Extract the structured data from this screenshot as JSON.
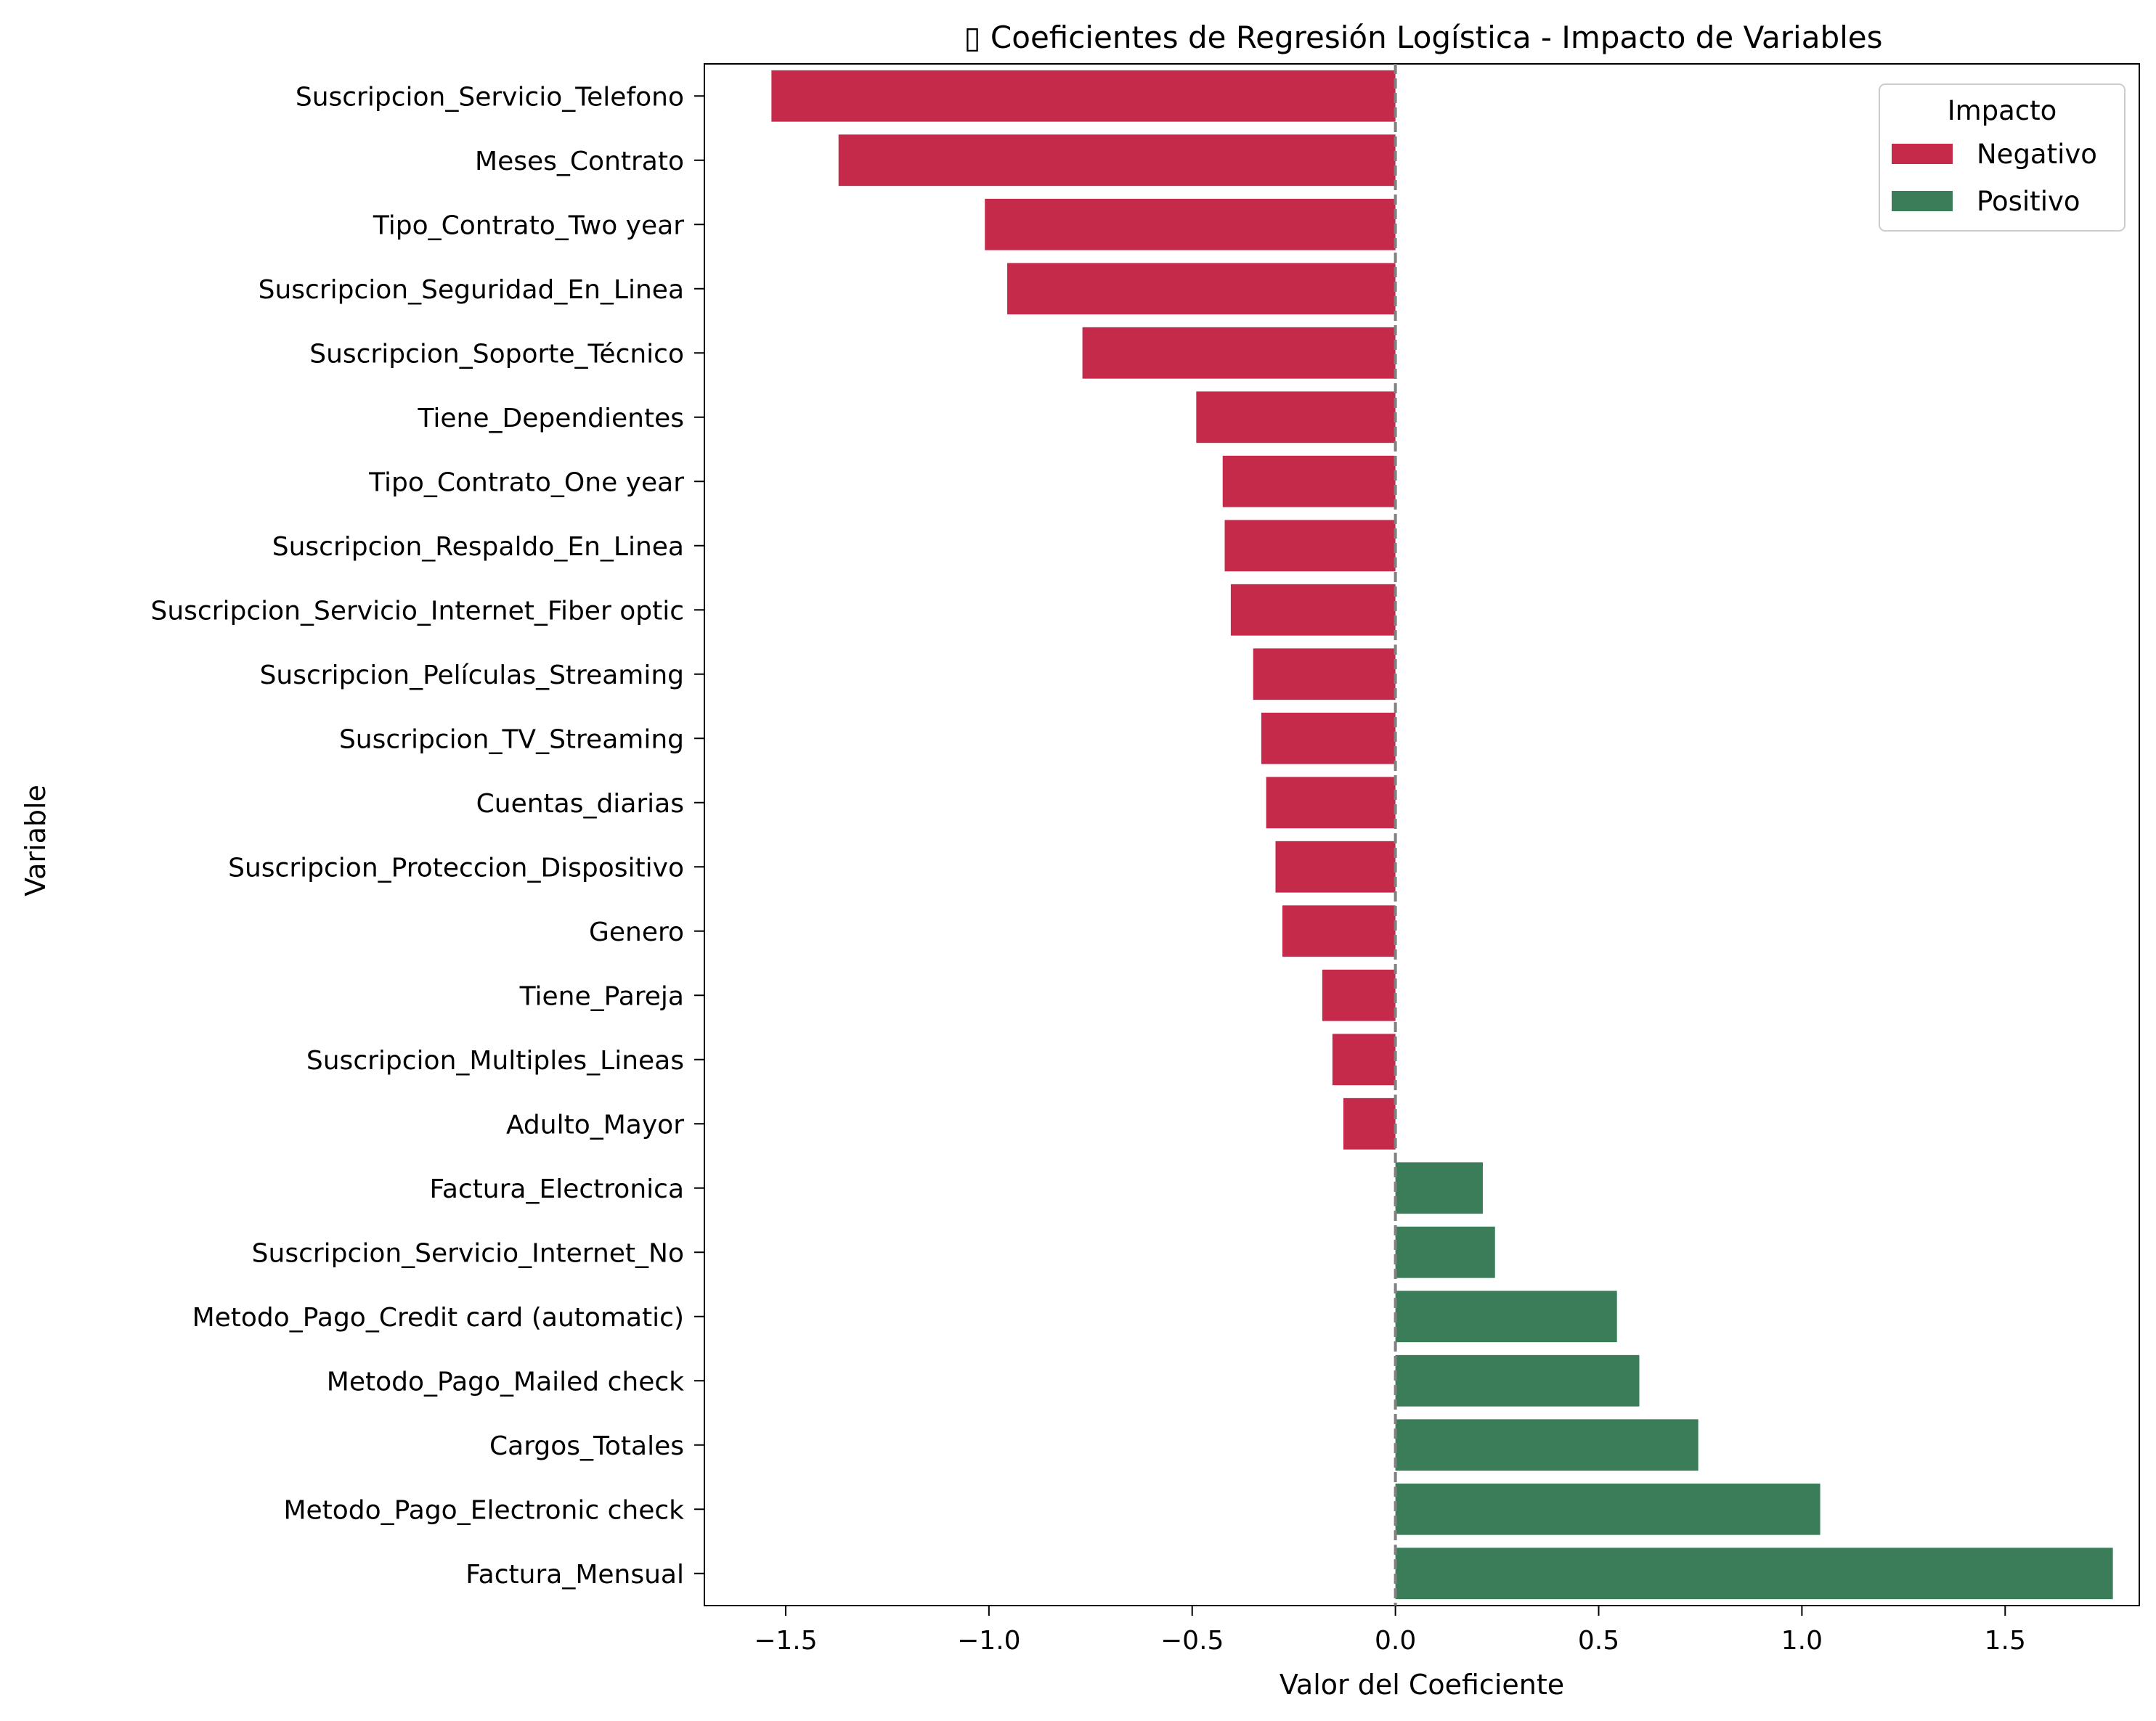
{
  "chart_data": {
    "type": "bar",
    "orientation": "horizontal",
    "title": "▯ Coeficientes de Regresión Logística - Impacto de Variables",
    "xlabel": "Valor del Coeficiente",
    "ylabel": "Variable",
    "xlim": [
      -1.7,
      1.83
    ],
    "xticks": [
      -1.5,
      -1.0,
      -0.5,
      0.0,
      0.5,
      1.0,
      1.5
    ],
    "xtick_labels": [
      "−1.5",
      "−1.0",
      "−0.5",
      "0.0",
      "0.5",
      "1.0",
      "1.5"
    ],
    "grid": false,
    "zero_line": {
      "value": 0,
      "style": "dashed",
      "color": "#808080"
    },
    "legend": {
      "title": "Impacto",
      "placement": "top-right",
      "entries": [
        {
          "label": "Negativo",
          "color": "#c52a4b"
        },
        {
          "label": "Positivo",
          "color": "#3a7d58"
        }
      ]
    },
    "colors": {
      "Negativo": "#c52a4b",
      "Positivo": "#3a7d58"
    },
    "categories": [
      "Suscripcion_Servicio_Telefono",
      "Meses_Contrato",
      "Tipo_Contrato_Two year",
      "Suscripcion_Seguridad_En_Linea",
      "Suscripcion_Soporte_Técnico",
      "Tiene_Dependientes",
      "Tipo_Contrato_One year",
      "Suscripcion_Respaldo_En_Linea",
      "Suscripcion_Servicio_Internet_Fiber optic",
      "Suscripcion_Películas_Streaming",
      "Suscripcion_TV_Streaming",
      "Cuentas_diarias",
      "Suscripcion_Proteccion_Dispositivo",
      "Genero",
      "Tiene_Pareja",
      "Suscripcion_Multiples_Lineas",
      "Adulto_Mayor",
      "Factura_Electronica",
      "Suscripcion_Servicio_Internet_No",
      "Metodo_Pago_Credit card (automatic)",
      "Metodo_Pago_Mailed check",
      "Cargos_Totales",
      "Metodo_Pago_Electronic check",
      "Factura_Mensual"
    ],
    "values": [
      -1.535,
      -1.37,
      -1.01,
      -0.955,
      -0.77,
      -0.49,
      -0.425,
      -0.42,
      -0.405,
      -0.35,
      -0.33,
      -0.318,
      -0.295,
      -0.278,
      -0.18,
      -0.155,
      -0.128,
      0.215,
      0.245,
      0.545,
      0.6,
      0.745,
      1.045,
      1.765
    ],
    "impact": [
      "Negativo",
      "Negativo",
      "Negativo",
      "Negativo",
      "Negativo",
      "Negativo",
      "Negativo",
      "Negativo",
      "Negativo",
      "Negativo",
      "Negativo",
      "Negativo",
      "Negativo",
      "Negativo",
      "Negativo",
      "Negativo",
      "Negativo",
      "Positivo",
      "Positivo",
      "Positivo",
      "Positivo",
      "Positivo",
      "Positivo",
      "Positivo"
    ]
  }
}
